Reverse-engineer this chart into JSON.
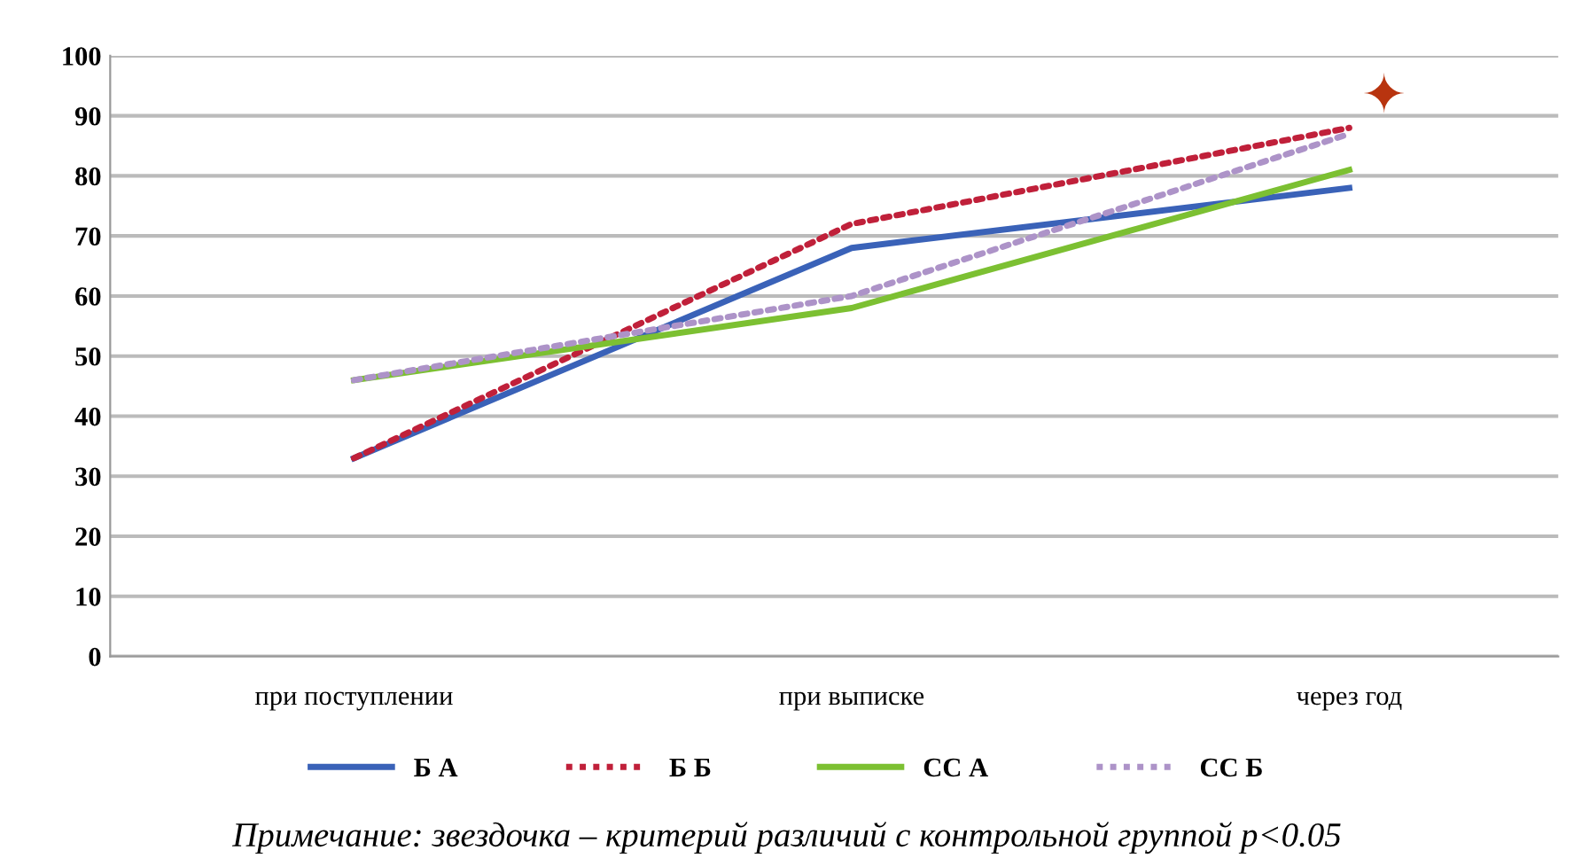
{
  "chart_data": {
    "type": "line",
    "categories": [
      "при поступлении",
      "при выписке",
      "через год"
    ],
    "series": [
      {
        "name": "Б А",
        "color": "#3a62b8",
        "values": [
          33,
          68,
          78
        ],
        "line_style": "solid"
      },
      {
        "name": "Б Б",
        "color": "#c0203a",
        "values": [
          33,
          72,
          88
        ],
        "line_style": "dotted"
      },
      {
        "name": "СС А",
        "color": "#7cc032",
        "values": [
          46,
          58,
          81
        ],
        "line_style": "solid"
      },
      {
        "name": "СС Б",
        "color": "#ad93c8",
        "values": [
          46,
          60,
          87
        ],
        "line_style": "dotted"
      }
    ],
    "ylim": [
      0,
      100
    ],
    "yticks": [
      0,
      10,
      20,
      30,
      40,
      50,
      60,
      70,
      80,
      90,
      100
    ],
    "grid": "y",
    "legend": "bottom",
    "marker": "none",
    "annotations": [
      "✦",
      "Примечание: звездочка – критерий различий с контрольной группой p<0.05"
    ]
  }
}
